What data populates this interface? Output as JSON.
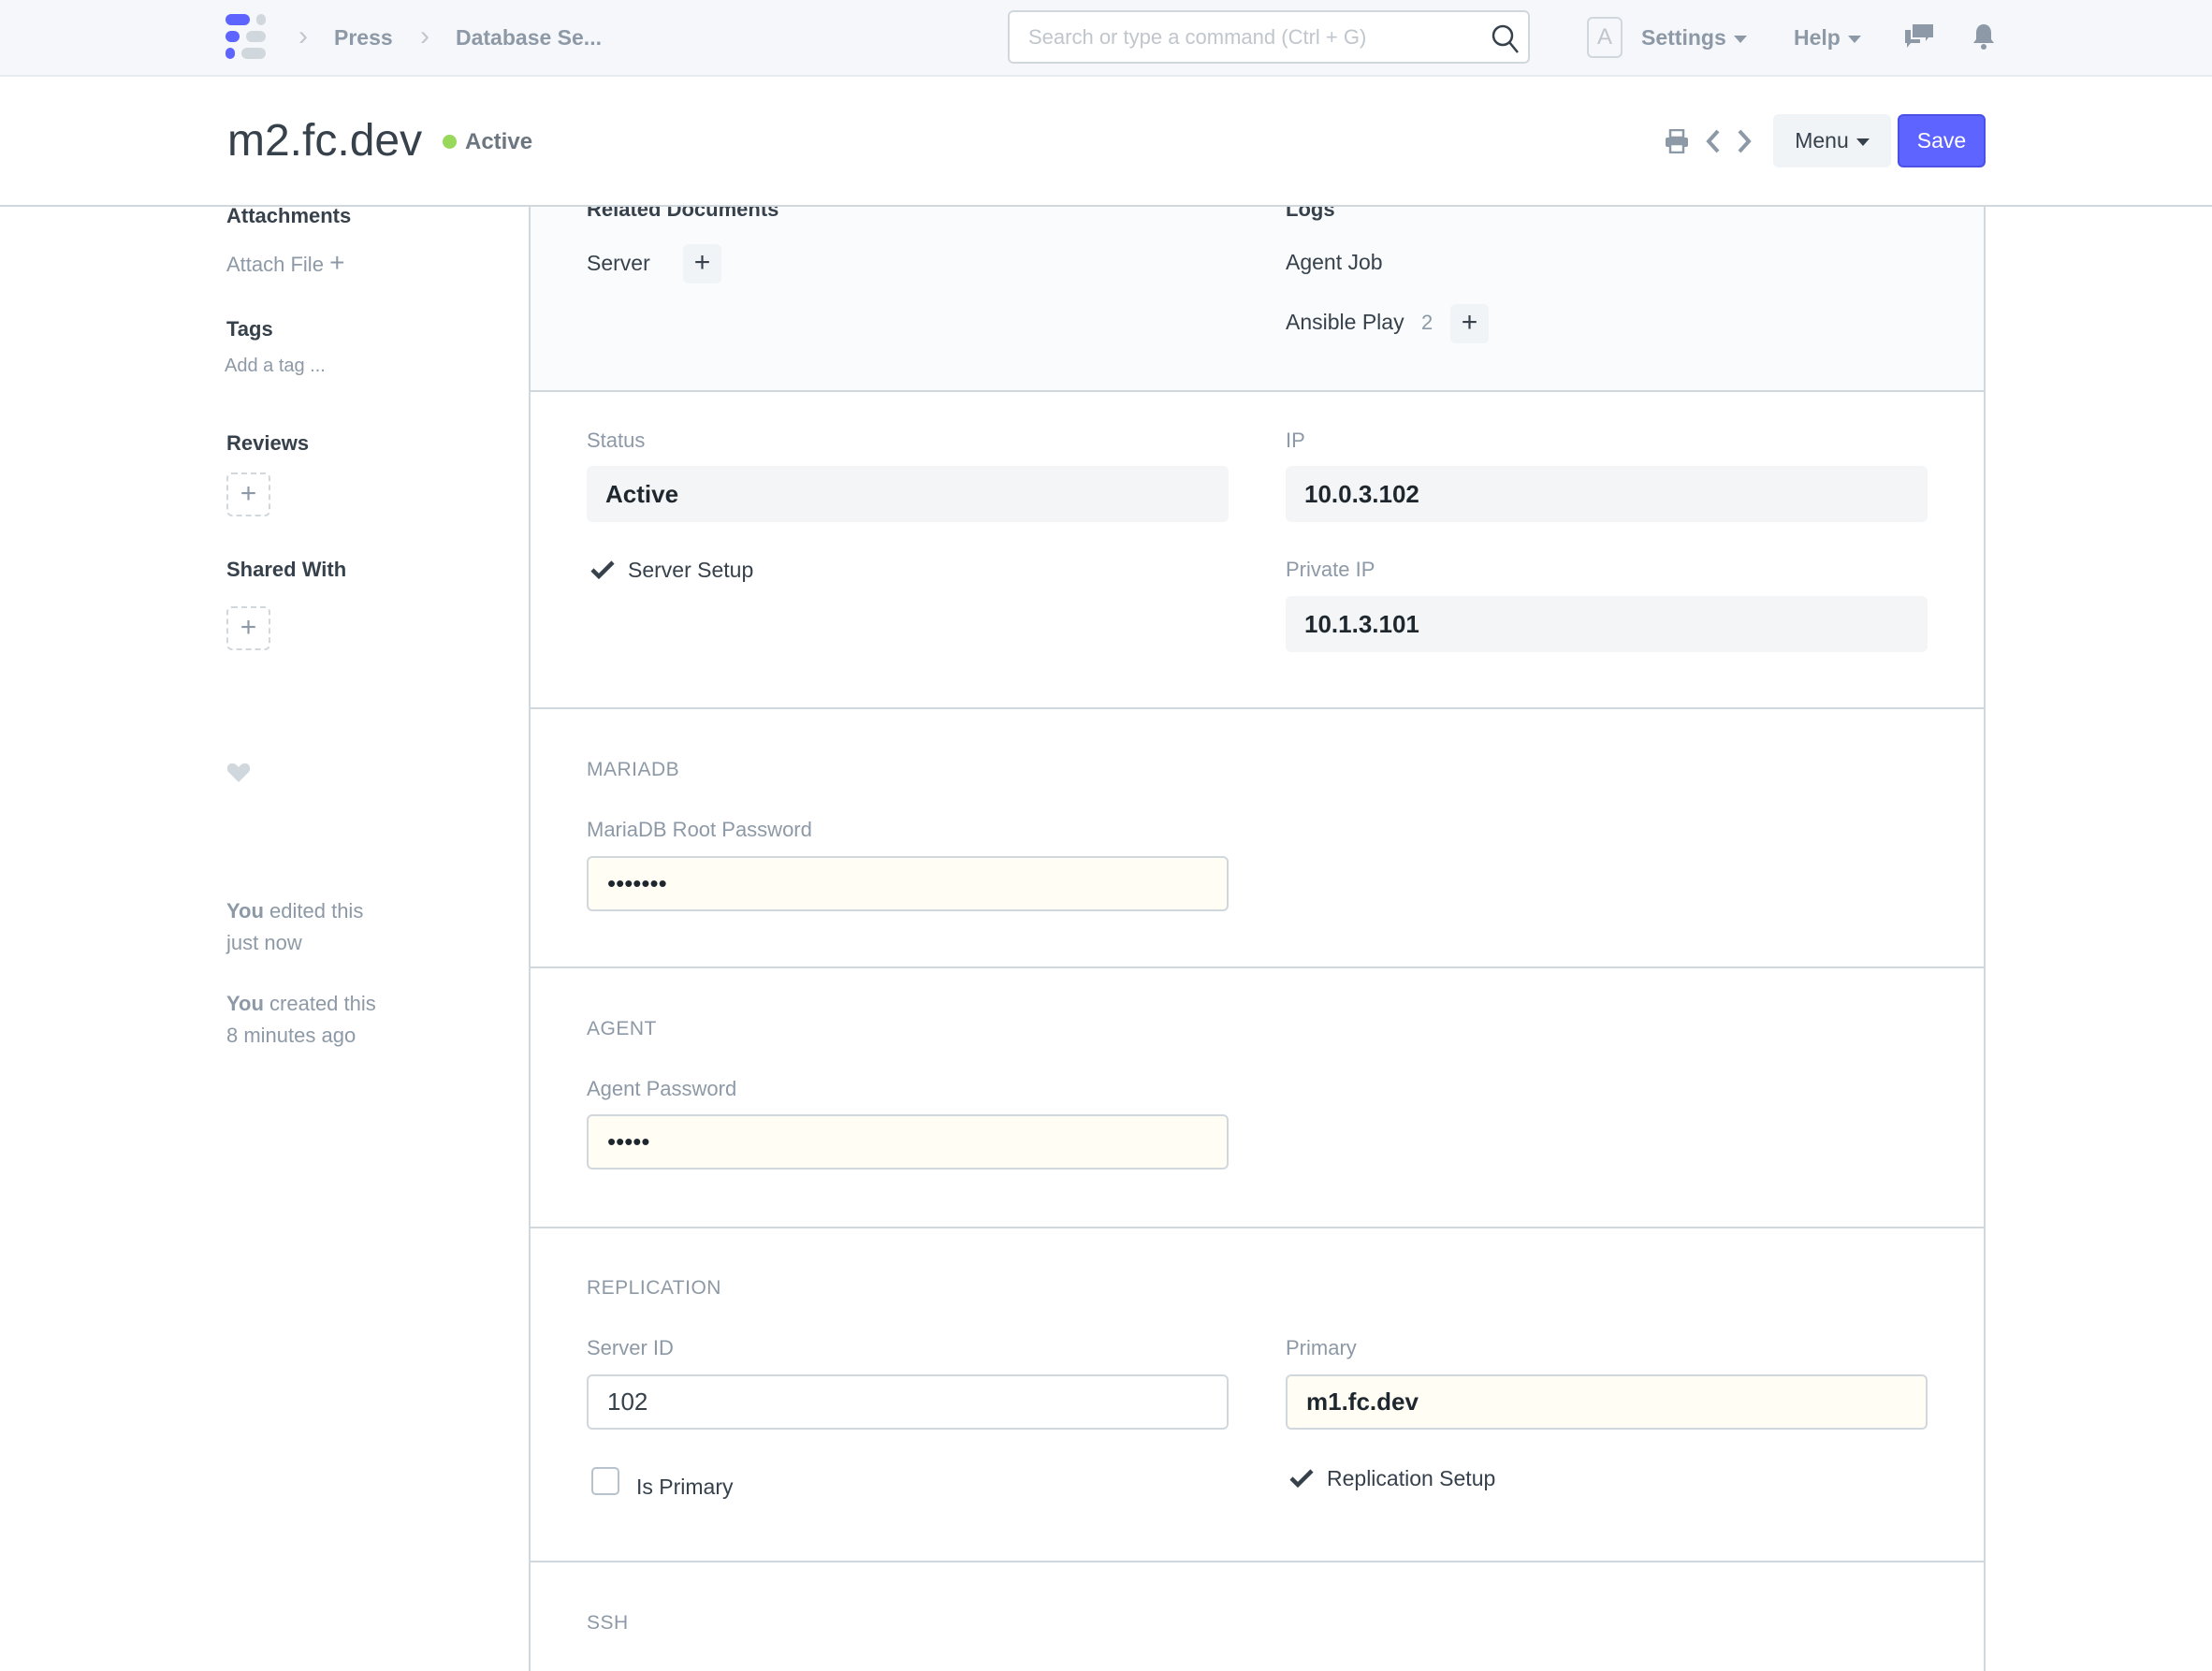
{
  "navbar": {
    "breadcrumbs": [
      "Press",
      "Database Se..."
    ],
    "search_placeholder": "Search or type a command (Ctrl + G)",
    "avatar_letter": "A",
    "settings_label": "Settings",
    "help_label": "Help"
  },
  "header": {
    "title": "m2.fc.dev",
    "status": "Active",
    "status_color": "#98d85b",
    "menu_label": "Menu",
    "save_label": "Save",
    "accent": "#5e64ff"
  },
  "sidebar": {
    "attachments_heading": "Attachments",
    "attach_file": "Attach File",
    "tags_heading": "Tags",
    "add_tag": "Add a tag ...",
    "reviews_heading": "Reviews",
    "shared_heading": "Shared With",
    "activity": [
      {
        "user": "You",
        "action": " edited this",
        "time": "just now"
      },
      {
        "user": "You",
        "action": " created this",
        "time": "8 minutes ago"
      }
    ]
  },
  "connections": {
    "related_heading": "Related Documents",
    "logs_heading": "Logs",
    "server": "Server",
    "agent_job": "Agent Job",
    "ansible_play": "Ansible Play",
    "ansible_count": "2"
  },
  "details": {
    "status_label": "Status",
    "status_value": "Active",
    "server_setup": "Server Setup",
    "ip_label": "IP",
    "ip_value": "10.0.3.102",
    "private_ip_label": "Private IP",
    "private_ip_value": "10.1.3.101"
  },
  "mariadb": {
    "heading": "MARIADB",
    "root_password_label": "MariaDB Root Password",
    "root_password_value": "•••••••"
  },
  "agent": {
    "heading": "AGENT",
    "password_label": "Agent Password",
    "password_value": "•••••"
  },
  "replication": {
    "heading": "REPLICATION",
    "server_id_label": "Server ID",
    "server_id_value": "102",
    "is_primary_label": "Is Primary",
    "is_primary_checked": false,
    "primary_label": "Primary",
    "primary_value": "m1.fc.dev",
    "replication_setup": "Replication Setup"
  },
  "ssh": {
    "heading": "SSH"
  }
}
